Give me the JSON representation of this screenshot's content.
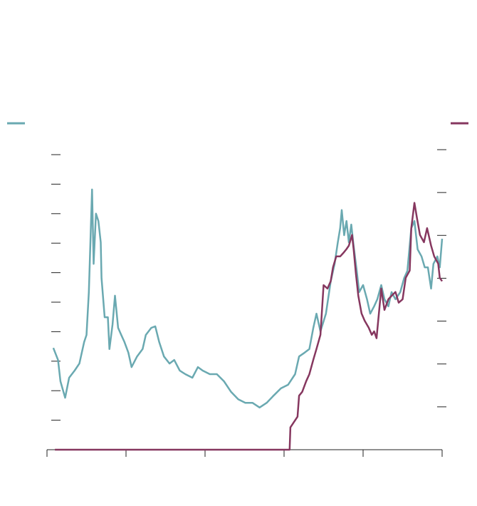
{
  "chart_data": {
    "type": "line",
    "xlim": [
      0,
      5
    ],
    "xticks": [
      0,
      1,
      2,
      3,
      4,
      5
    ],
    "ylim": [
      0,
      10
    ],
    "yticks": [
      1,
      2,
      3,
      4,
      5,
      6,
      7,
      8,
      9,
      10
    ],
    "y2lim": [
      0,
      7
    ],
    "y2ticks": [
      1,
      2,
      3,
      4,
      5,
      6,
      7
    ],
    "series": [
      {
        "color": "#6aa9b1",
        "axis": "y",
        "x": [
          0.08,
          0.14,
          0.17,
          0.23,
          0.28,
          0.35,
          0.41,
          0.47,
          0.5,
          0.53,
          0.57,
          0.59,
          0.62,
          0.65,
          0.68,
          0.69,
          0.73,
          0.77,
          0.79,
          0.83,
          0.86,
          0.9,
          0.94,
          0.98,
          1.03,
          1.07,
          1.14,
          1.21,
          1.25,
          1.32,
          1.37,
          1.42,
          1.48,
          1.55,
          1.61,
          1.68,
          1.75,
          1.84,
          1.91,
          1.97,
          2.06,
          2.15,
          2.24,
          2.33,
          2.42,
          2.51,
          2.6,
          2.69,
          2.78,
          2.87,
          2.96,
          3.05,
          3.14,
          3.19,
          3.26,
          3.32,
          3.37,
          3.41,
          3.46,
          3.53,
          3.59,
          3.64,
          3.68,
          3.71,
          3.73,
          3.76,
          3.79,
          3.82,
          3.85,
          3.88,
          3.92,
          3.95,
          4.0,
          4.05,
          4.09,
          4.14,
          4.18,
          4.23,
          4.27,
          4.32,
          4.36,
          4.41,
          4.47,
          4.52,
          4.56,
          4.61,
          4.65,
          4.69,
          4.74,
          4.78,
          4.82,
          4.86,
          4.89,
          4.94,
          4.97,
          5.0
        ],
        "values": [
          3.45,
          3.04,
          2.32,
          1.76,
          2.44,
          2.68,
          2.92,
          3.65,
          3.89,
          5.34,
          8.82,
          6.3,
          8.0,
          7.75,
          7.03,
          5.82,
          4.49,
          4.49,
          3.41,
          4.25,
          5.22,
          4.13,
          3.89,
          3.65,
          3.29,
          2.8,
          3.16,
          3.41,
          3.89,
          4.13,
          4.18,
          3.65,
          3.16,
          2.92,
          3.04,
          2.68,
          2.56,
          2.44,
          2.8,
          2.68,
          2.56,
          2.56,
          2.32,
          1.96,
          1.71,
          1.59,
          1.59,
          1.43,
          1.59,
          1.84,
          2.08,
          2.2,
          2.56,
          3.16,
          3.29,
          3.41,
          4.13,
          4.61,
          4.01,
          4.61,
          5.7,
          6.3,
          7.03,
          7.51,
          8.12,
          7.27,
          7.75,
          7.03,
          7.63,
          6.91,
          6.06,
          5.34,
          5.58,
          5.1,
          4.61,
          4.86,
          5.1,
          5.58,
          5.1,
          4.86,
          5.34,
          5.1,
          5.34,
          5.82,
          6.06,
          7.51,
          7.75,
          6.79,
          6.55,
          6.18,
          6.18,
          5.46,
          6.3,
          6.55,
          6.18,
          7.15
        ]
      },
      {
        "color": "#86375f",
        "axis": "y2",
        "x": [
          0.1,
          3.03,
          3.07,
          3.08,
          3.12,
          3.17,
          3.19,
          3.23,
          3.28,
          3.32,
          3.37,
          3.41,
          3.46,
          3.5,
          3.55,
          3.59,
          3.62,
          3.66,
          3.71,
          3.75,
          3.79,
          3.82,
          3.86,
          3.88,
          3.91,
          3.94,
          3.98,
          4.02,
          4.07,
          4.11,
          4.14,
          4.17,
          4.2,
          4.23,
          4.27,
          4.32,
          4.36,
          4.41,
          4.45,
          4.5,
          4.54,
          4.59,
          4.61,
          4.65,
          4.68,
          4.72,
          4.77,
          4.81,
          4.86,
          4.9,
          4.95,
          4.97,
          5.0
        ],
        "values": [
          0,
          0,
          0,
          0.52,
          0.63,
          0.77,
          1.26,
          1.35,
          1.6,
          1.76,
          2.1,
          2.35,
          2.68,
          3.84,
          3.76,
          3.93,
          4.26,
          4.51,
          4.51,
          4.59,
          4.68,
          4.76,
          5.01,
          4.68,
          4.09,
          3.59,
          3.18,
          3.01,
          2.85,
          2.68,
          2.76,
          2.6,
          3.18,
          3.76,
          3.26,
          3.51,
          3.59,
          3.68,
          3.43,
          3.51,
          4.01,
          4.18,
          5.17,
          5.76,
          5.42,
          5.01,
          4.84,
          5.17,
          4.76,
          4.51,
          4.34,
          4.01,
          3.93
        ]
      }
    ]
  }
}
